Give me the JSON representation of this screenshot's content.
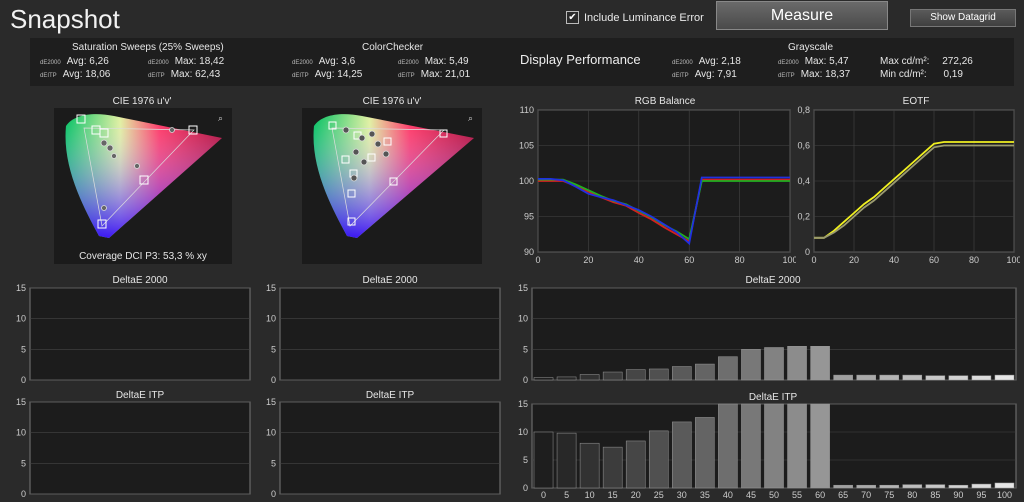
{
  "header": {
    "title": "Snapshot",
    "luminance_checkbox": {
      "label": "Include Luminance Error",
      "checked": true
    },
    "measure_label": "Measure",
    "datagrid_label": "Show Datagrid"
  },
  "summary": {
    "saturation": {
      "title": "Saturation Sweeps (25% Sweeps)",
      "de2000_avg_label": "Avg: 6,26",
      "de2000_max_label": "Max: 18,42",
      "deitp_avg_label": "Avg: 18,06",
      "deitp_max_label": "Max: 62,43"
    },
    "colorchecker": {
      "title": "ColorChecker",
      "de2000_avg_label": "Avg: 3,6",
      "de2000_max_label": "Max: 5,49",
      "deitp_avg_label": "Avg: 14,25",
      "deitp_max_label": "Max: 21,01"
    },
    "display_performance_label": "Display Performance",
    "grayscale": {
      "title": "Grayscale",
      "de2000_avg_label": "Avg: 2,18",
      "deitp_avg_label": "Avg: 7,91",
      "de2000_max_label": "Max: 5,47",
      "deitp_max_label": "Max: 18,37",
      "max_cd_label": "Max cd/m²:",
      "max_cd_value": "272,26",
      "min_cd_label": "Min cd/m²:",
      "min_cd_value": "0,19"
    },
    "de2000_tag": "dE2000",
    "deitp_tag": "dEITP"
  },
  "cie": {
    "title": "CIE 1976 u'v'",
    "coverage_label": "Coverage DCI P3:  53,3 % xy",
    "zoom_icon": "magnifier-icon"
  },
  "rgb_balance": {
    "title": "RGB Balance",
    "y_ticks": [
      "110",
      "105",
      "100",
      "95",
      "90"
    ],
    "x_ticks": [
      "0",
      "20",
      "40",
      "60",
      "80",
      "100"
    ]
  },
  "eotf": {
    "title": "EOTF",
    "y_ticks": [
      "0,8",
      "0,6",
      "0,4",
      "0,2",
      "0"
    ],
    "x_ticks": [
      "0",
      "20",
      "40",
      "60",
      "80",
      "100"
    ]
  },
  "charts": {
    "de2000_label": "DeltaE 2000",
    "deitp_label": "DeltaE ITP",
    "y_ticks": [
      "15",
      "10",
      "5",
      "0"
    ]
  },
  "chart_data": [
    {
      "type": "line",
      "title": "RGB Balance",
      "xlim": [
        0,
        100
      ],
      "ylim": [
        90,
        110
      ],
      "series": [
        {
          "color": "#d22020",
          "x": [
            0,
            5,
            10,
            15,
            20,
            25,
            30,
            35,
            40,
            45,
            50,
            55,
            60,
            65,
            70,
            75,
            80,
            85,
            90,
            95,
            100
          ],
          "values": [
            100,
            100,
            100,
            99.3,
            98.5,
            97.7,
            97,
            96.5,
            95.5,
            94.6,
            93.5,
            92.5,
            91.5,
            100.2,
            100.2,
            100.2,
            100.2,
            100.2,
            100.2,
            100.2,
            100.2
          ]
        },
        {
          "color": "#20b020",
          "x": [
            0,
            5,
            10,
            15,
            20,
            25,
            30,
            35,
            40,
            45,
            50,
            55,
            60,
            65,
            70,
            75,
            80,
            85,
            90,
            95,
            100
          ],
          "values": [
            100.2,
            100.2,
            100.2,
            99.5,
            98.7,
            97.9,
            97.2,
            96.7,
            95.8,
            94.9,
            93.8,
            92.9,
            91.8,
            100,
            100,
            100,
            100,
            100,
            100,
            100,
            100
          ]
        },
        {
          "color": "#2030e0",
          "x": [
            0,
            5,
            10,
            15,
            20,
            25,
            30,
            35,
            40,
            45,
            50,
            55,
            60,
            65,
            70,
            75,
            80,
            85,
            90,
            95,
            100
          ],
          "values": [
            100.3,
            100.3,
            100.1,
            99.2,
            98.2,
            97.7,
            97.3,
            96.6,
            95.9,
            95.0,
            93.9,
            92.8,
            91.2,
            100.5,
            100.5,
            100.5,
            100.5,
            100.5,
            100.5,
            100.5,
            100.5
          ]
        }
      ]
    },
    {
      "type": "line",
      "title": "EOTF",
      "xlim": [
        0,
        100
      ],
      "ylim": [
        0,
        0.8
      ],
      "series": [
        {
          "color": "#f0f020",
          "x": [
            0,
            5,
            10,
            15,
            20,
            25,
            30,
            35,
            40,
            45,
            50,
            55,
            60,
            65,
            70,
            75,
            80,
            85,
            90,
            95,
            100
          ],
          "values": [
            0.08,
            0.08,
            0.12,
            0.17,
            0.22,
            0.27,
            0.31,
            0.36,
            0.41,
            0.46,
            0.51,
            0.56,
            0.61,
            0.62,
            0.62,
            0.62,
            0.62,
            0.62,
            0.62,
            0.62,
            0.62
          ]
        },
        {
          "color": "#9a9a70",
          "x": [
            0,
            5,
            10,
            15,
            20,
            25,
            30,
            35,
            40,
            45,
            50,
            55,
            60,
            65,
            70,
            75,
            80,
            85,
            90,
            95,
            100
          ],
          "values": [
            0.08,
            0.08,
            0.11,
            0.15,
            0.2,
            0.25,
            0.29,
            0.34,
            0.39,
            0.44,
            0.49,
            0.54,
            0.59,
            0.6,
            0.6,
            0.6,
            0.6,
            0.6,
            0.6,
            0.6,
            0.6
          ]
        }
      ]
    },
    {
      "type": "bar",
      "title": "DeltaE 2000",
      "ylim": [
        0,
        15
      ],
      "categories": [
        "0",
        "5",
        "10",
        "15",
        "20",
        "25",
        "30",
        "35",
        "40",
        "45",
        "50",
        "55",
        "60",
        "65",
        "70",
        "75",
        "80",
        "85",
        "90",
        "95",
        "100"
      ],
      "values": [
        0.4,
        0.5,
        0.9,
        1.3,
        1.7,
        1.8,
        2.2,
        2.6,
        3.8,
        5.0,
        5.3,
        5.5,
        5.5,
        0.8,
        0.8,
        0.8,
        0.8,
        0.7,
        0.7,
        0.7,
        0.8
      ]
    },
    {
      "type": "bar",
      "title": "DeltaE ITP",
      "ylim": [
        0,
        15
      ],
      "categories": [
        "0",
        "5",
        "10",
        "15",
        "20",
        "25",
        "30",
        "35",
        "40",
        "45",
        "50",
        "55",
        "60",
        "65",
        "70",
        "75",
        "80",
        "85",
        "90",
        "95",
        "100"
      ],
      "values": [
        10.0,
        9.8,
        8.0,
        7.3,
        8.4,
        10.2,
        11.8,
        12.6,
        15,
        15,
        15,
        15,
        15,
        0.5,
        0.5,
        0.5,
        0.6,
        0.6,
        0.5,
        0.7,
        0.9
      ]
    }
  ]
}
